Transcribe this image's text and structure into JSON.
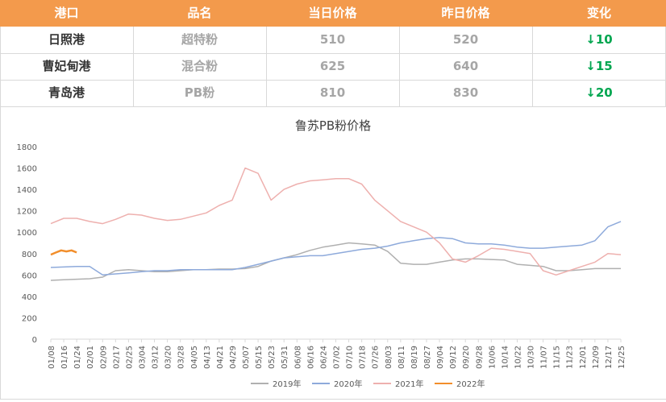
{
  "table": {
    "headers": [
      "港口",
      "品名",
      "当日价格",
      "昨日价格",
      "变化"
    ],
    "rows": [
      {
        "port": "日照港",
        "product": "超特粉",
        "today": "510",
        "yesterday": "520",
        "change": "↓10"
      },
      {
        "port": "曹妃甸港",
        "product": "混合粉",
        "today": "625",
        "yesterday": "640",
        "change": "↓15"
      },
      {
        "port": "青岛港",
        "product": "PB粉",
        "today": "810",
        "yesterday": "830",
        "change": "↓20"
      }
    ]
  },
  "colors": {
    "header_bg": "#f39a4c",
    "decrease": "#00a650",
    "series_2019": "#b0b0b0",
    "series_2020": "#8eaadb",
    "series_2021": "#eeb0ae",
    "series_2022": "#f28e2b"
  },
  "chart_data": {
    "type": "line",
    "title": "鲁苏PB粉价格",
    "xlabel": "",
    "ylabel": "",
    "ylim": [
      0,
      1800
    ],
    "yticks": [
      0,
      200,
      400,
      600,
      800,
      1000,
      1200,
      1400,
      1600,
      1800
    ],
    "xticks": [
      "01/08",
      "01/16",
      "01/24",
      "02/01",
      "02/09",
      "02/17",
      "02/25",
      "03/04",
      "03/12",
      "03/20",
      "03/28",
      "04/05",
      "04/13",
      "04/21",
      "04/29",
      "05/07",
      "05/15",
      "05/23",
      "05/31",
      "06/08",
      "06/16",
      "06/24",
      "07/02",
      "07/10",
      "07/18",
      "07/26",
      "08/03",
      "08/11",
      "08/19",
      "08/27",
      "09/04",
      "09/12",
      "09/20",
      "09/28",
      "10/06",
      "10/14",
      "10/22",
      "10/30",
      "11/07",
      "11/15",
      "11/23",
      "12/01",
      "12/09",
      "12/17",
      "12/25"
    ],
    "grid": false,
    "legend_position": "bottom",
    "series": [
      {
        "name": "2019年",
        "points": [
          [
            0,
            550
          ],
          [
            1,
            555
          ],
          [
            2,
            560
          ],
          [
            3,
            565
          ],
          [
            4,
            580
          ],
          [
            5,
            640
          ],
          [
            6,
            650
          ],
          [
            7,
            640
          ],
          [
            8,
            630
          ],
          [
            9,
            630
          ],
          [
            10,
            640
          ],
          [
            11,
            650
          ],
          [
            12,
            650
          ],
          [
            13,
            655
          ],
          [
            14,
            655
          ],
          [
            15,
            660
          ],
          [
            16,
            680
          ],
          [
            17,
            730
          ],
          [
            18,
            760
          ],
          [
            19,
            790
          ],
          [
            20,
            830
          ],
          [
            21,
            860
          ],
          [
            22,
            880
          ],
          [
            23,
            900
          ],
          [
            24,
            890
          ],
          [
            25,
            880
          ],
          [
            26,
            820
          ],
          [
            27,
            710
          ],
          [
            28,
            700
          ],
          [
            29,
            700
          ],
          [
            30,
            720
          ],
          [
            31,
            740
          ],
          [
            32,
            750
          ],
          [
            33,
            750
          ],
          [
            34,
            745
          ],
          [
            35,
            740
          ],
          [
            36,
            700
          ],
          [
            37,
            690
          ],
          [
            38,
            680
          ],
          [
            39,
            640
          ],
          [
            40,
            640
          ],
          [
            41,
            650
          ],
          [
            42,
            660
          ],
          [
            43,
            660
          ],
          [
            44,
            660
          ]
        ]
      },
      {
        "name": "2020年",
        "points": [
          [
            0,
            670
          ],
          [
            1,
            675
          ],
          [
            2,
            680
          ],
          [
            3,
            680
          ],
          [
            4,
            600
          ],
          [
            5,
            610
          ],
          [
            6,
            620
          ],
          [
            7,
            630
          ],
          [
            8,
            640
          ],
          [
            9,
            640
          ],
          [
            10,
            650
          ],
          [
            11,
            650
          ],
          [
            12,
            650
          ],
          [
            13,
            650
          ],
          [
            14,
            650
          ],
          [
            15,
            670
          ],
          [
            16,
            700
          ],
          [
            17,
            730
          ],
          [
            18,
            760
          ],
          [
            19,
            770
          ],
          [
            20,
            780
          ],
          [
            21,
            780
          ],
          [
            22,
            800
          ],
          [
            23,
            820
          ],
          [
            24,
            840
          ],
          [
            25,
            850
          ],
          [
            26,
            870
          ],
          [
            27,
            900
          ],
          [
            28,
            920
          ],
          [
            29,
            940
          ],
          [
            30,
            950
          ],
          [
            31,
            940
          ],
          [
            32,
            900
          ],
          [
            33,
            890
          ],
          [
            34,
            890
          ],
          [
            35,
            880
          ],
          [
            36,
            860
          ],
          [
            37,
            850
          ],
          [
            38,
            850
          ],
          [
            39,
            860
          ],
          [
            40,
            870
          ],
          [
            41,
            880
          ],
          [
            42,
            920
          ],
          [
            43,
            1050
          ],
          [
            44,
            1100
          ]
        ]
      },
      {
        "name": "2021年",
        "points": [
          [
            0,
            1080
          ],
          [
            1,
            1130
          ],
          [
            2,
            1130
          ],
          [
            3,
            1100
          ],
          [
            4,
            1080
          ],
          [
            5,
            1120
          ],
          [
            6,
            1170
          ],
          [
            7,
            1160
          ],
          [
            8,
            1130
          ],
          [
            9,
            1110
          ],
          [
            10,
            1120
          ],
          [
            11,
            1150
          ],
          [
            12,
            1180
          ],
          [
            13,
            1250
          ],
          [
            14,
            1300
          ],
          [
            15,
            1600
          ],
          [
            16,
            1550
          ],
          [
            17,
            1300
          ],
          [
            18,
            1400
          ],
          [
            19,
            1450
          ],
          [
            20,
            1480
          ],
          [
            21,
            1490
          ],
          [
            22,
            1500
          ],
          [
            23,
            1500
          ],
          [
            24,
            1450
          ],
          [
            25,
            1300
          ],
          [
            26,
            1200
          ],
          [
            27,
            1100
          ],
          [
            28,
            1050
          ],
          [
            29,
            1000
          ],
          [
            30,
            900
          ],
          [
            31,
            750
          ],
          [
            32,
            720
          ],
          [
            33,
            780
          ],
          [
            34,
            850
          ],
          [
            35,
            840
          ],
          [
            36,
            820
          ],
          [
            37,
            800
          ],
          [
            38,
            640
          ],
          [
            39,
            600
          ],
          [
            40,
            640
          ],
          [
            41,
            680
          ],
          [
            42,
            720
          ],
          [
            43,
            800
          ],
          [
            44,
            790
          ]
        ]
      },
      {
        "name": "2022年",
        "points": [
          [
            0,
            790
          ],
          [
            0.4,
            810
          ],
          [
            0.8,
            830
          ],
          [
            1.2,
            820
          ],
          [
            1.6,
            830
          ],
          [
            2,
            810
          ]
        ]
      }
    ]
  }
}
